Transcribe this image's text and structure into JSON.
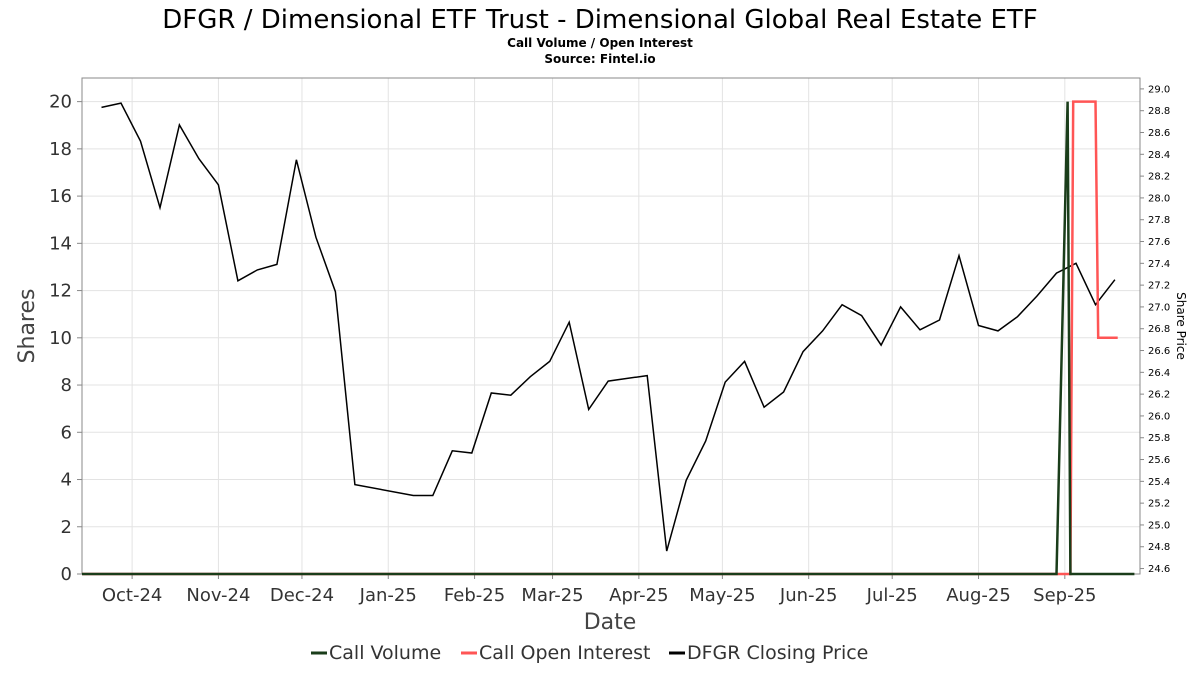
{
  "chart_data": {
    "type": "line",
    "title": "DFGR / Dimensional ETF Trust - Dimensional Global Real Estate ETF",
    "subtitle_lines": [
      "Call Volume / Open Interest",
      "Source: Fintel.io"
    ],
    "xlabel": "Date",
    "ylabel": "Shares",
    "y2label": "Share Price",
    "ylim": [
      0,
      21
    ],
    "y2lim": [
      24.55,
      29.1
    ],
    "xlim": [
      "2024-09-13",
      "2025-09-28"
    ],
    "grid": true,
    "legend_position": "bottom-center",
    "y_ticks": [
      "0",
      "2",
      "4",
      "6",
      "8",
      "10",
      "12",
      "14",
      "16",
      "18",
      "20"
    ],
    "y2_ticks": [
      "24.6",
      "24.8",
      "25.0",
      "25.2",
      "25.4",
      "25.6",
      "25.8",
      "26.0",
      "26.2",
      "26.4",
      "26.6",
      "26.8",
      "27.0",
      "27.2",
      "27.4",
      "27.6",
      "27.8",
      "28.0",
      "28.2",
      "28.4",
      "28.6",
      "28.8",
      "29.0"
    ],
    "x_ticks": [
      {
        "label": "Oct-24",
        "date": "2024-10-01"
      },
      {
        "label": "Nov-24",
        "date": "2024-11-01"
      },
      {
        "label": "Dec-24",
        "date": "2024-12-01"
      },
      {
        "label": "Jan-25",
        "date": "2025-01-01"
      },
      {
        "label": "Feb-25",
        "date": "2025-02-01"
      },
      {
        "label": "Mar-25",
        "date": "2025-03-01"
      },
      {
        "label": "Apr-25",
        "date": "2025-04-01"
      },
      {
        "label": "May-25",
        "date": "2025-05-01"
      },
      {
        "label": "Jun-25",
        "date": "2025-06-01"
      },
      {
        "label": "Jul-25",
        "date": "2025-07-01"
      },
      {
        "label": "Aug-25",
        "date": "2025-08-01"
      },
      {
        "label": "Sep-25",
        "date": "2025-09-01"
      }
    ],
    "series": [
      {
        "name": "Call Volume",
        "axis": "left",
        "color": "#1a3d1a",
        "points": [
          [
            "2024-09-13",
            0
          ],
          [
            "2025-08-29",
            0
          ],
          [
            "2025-09-02",
            20
          ],
          [
            "2025-09-03",
            0
          ],
          [
            "2025-09-26",
            0
          ]
        ]
      },
      {
        "name": "Call Open Interest",
        "axis": "left",
        "color": "#ff5555",
        "points": [
          [
            "2024-09-13",
            0
          ],
          [
            "2025-09-03",
            0
          ],
          [
            "2025-09-04",
            20
          ],
          [
            "2025-09-12",
            20
          ],
          [
            "2025-09-13",
            10
          ],
          [
            "2025-09-20",
            10
          ]
        ]
      },
      {
        "name": "DFGR Closing Price",
        "axis": "right",
        "color": "#000000",
        "points": [
          [
            "2024-09-20",
            28.83
          ],
          [
            "2024-09-27",
            28.87
          ],
          [
            "2024-10-04",
            28.52
          ],
          [
            "2024-10-11",
            27.91
          ],
          [
            "2024-10-18",
            28.67
          ],
          [
            "2024-10-25",
            28.36
          ],
          [
            "2024-11-01",
            28.12
          ],
          [
            "2024-11-08",
            27.24
          ],
          [
            "2024-11-15",
            27.34
          ],
          [
            "2024-11-22",
            27.39
          ],
          [
            "2024-11-29",
            28.35
          ],
          [
            "2024-12-06",
            27.64
          ],
          [
            "2024-12-13",
            27.14
          ],
          [
            "2024-12-20",
            25.37
          ],
          [
            "2025-01-10",
            25.27
          ],
          [
            "2025-01-17",
            25.27
          ],
          [
            "2025-01-24",
            25.68
          ],
          [
            "2025-01-31",
            25.66
          ],
          [
            "2025-02-07",
            26.21
          ],
          [
            "2025-02-14",
            26.19
          ],
          [
            "2025-02-21",
            26.36
          ],
          [
            "2025-02-28",
            26.5
          ],
          [
            "2025-03-07",
            26.86
          ],
          [
            "2025-03-14",
            26.06
          ],
          [
            "2025-03-21",
            26.32
          ],
          [
            "2025-04-04",
            26.37
          ],
          [
            "2025-04-11",
            24.76
          ],
          [
            "2025-04-18",
            25.41
          ],
          [
            "2025-04-25",
            25.77
          ],
          [
            "2025-05-02",
            26.31
          ],
          [
            "2025-05-09",
            26.5
          ],
          [
            "2025-05-16",
            26.08
          ],
          [
            "2025-05-23",
            26.22
          ],
          [
            "2025-05-30",
            26.59
          ],
          [
            "2025-06-06",
            26.78
          ],
          [
            "2025-06-13",
            27.02
          ],
          [
            "2025-06-20",
            26.92
          ],
          [
            "2025-06-27",
            26.65
          ],
          [
            "2025-07-04",
            27.0
          ],
          [
            "2025-07-11",
            26.79
          ],
          [
            "2025-07-18",
            26.88
          ],
          [
            "2025-07-25",
            27.47
          ],
          [
            "2025-08-01",
            26.83
          ],
          [
            "2025-08-08",
            26.78
          ],
          [
            "2025-08-15",
            26.91
          ],
          [
            "2025-08-22",
            27.1
          ],
          [
            "2025-08-29",
            27.31
          ],
          [
            "2025-09-05",
            27.4
          ],
          [
            "2025-09-12",
            27.02
          ],
          [
            "2025-09-19",
            27.25
          ]
        ]
      }
    ]
  }
}
